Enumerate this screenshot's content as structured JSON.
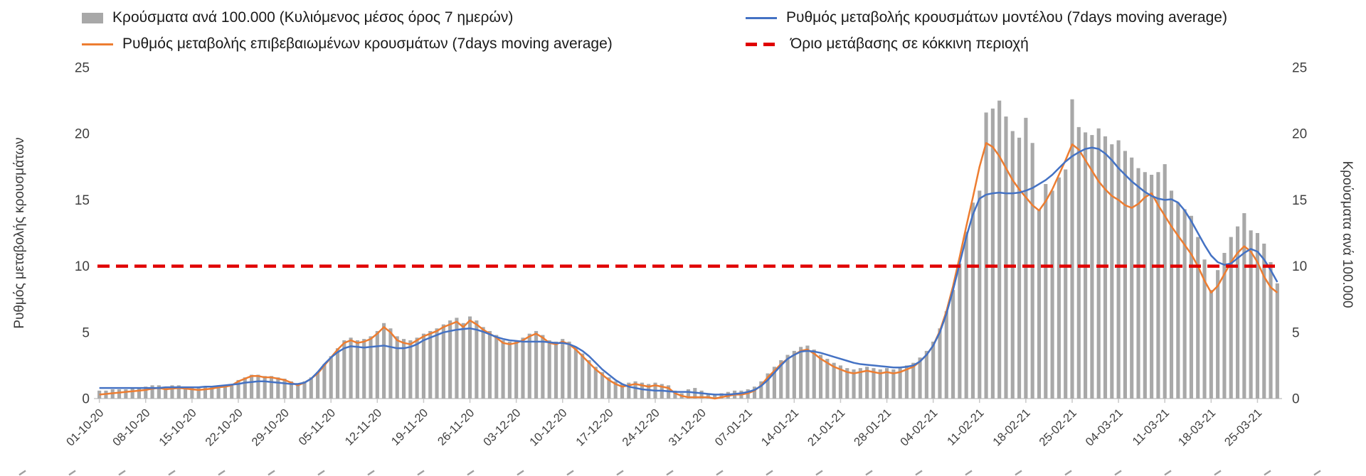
{
  "legend": {
    "bars": "Κρούσματα ανά 100.000 (Κυλιόμενος μέσος όρος 7 ημερών)",
    "model": "Ρυθμός μεταβολής κρουσμάτων μοντέλου (7days moving average)",
    "confirmed": "Ρυθμός μεταβολής επιβεβαιωμένων κρουσμάτων (7days moving average)",
    "threshold": "Όριο μετάβασης σε κόκκινη περιοχή"
  },
  "axes": {
    "left_label": "Ρυθμός μεταβολής κρουσμάτων",
    "right_label": "Κρούσματα ανά 100.000",
    "y_ticks": [
      0,
      5,
      10,
      15,
      20,
      25
    ],
    "x_ticks": [
      "01-10-20",
      "08-10-20",
      "15-10-20",
      "22-10-20",
      "29-10-20",
      "05-11-20",
      "12-11-20",
      "19-11-20",
      "26-11-20",
      "03-12-20",
      "10-12-20",
      "17-12-20",
      "24-12-20",
      "31-12-20",
      "07-01-21",
      "14-01-21",
      "21-01-21",
      "28-01-21",
      "04-02-21",
      "11-02-21",
      "18-02-21",
      "25-02-21",
      "04-03-21",
      "11-03-21",
      "18-03-21",
      "25-03-21"
    ]
  },
  "colors": {
    "bar": "#a8a8a8",
    "model_line": "#4472c4",
    "confirmed_line": "#ed7d31",
    "threshold_line": "#e00000",
    "axis_text": "#404040"
  },
  "chart_data": {
    "type": "bar",
    "subtype": "combo-bar-lines-threshold",
    "title": "",
    "xlabel": "",
    "ylabel_left": "Ρυθμός μεταβολής κρουσμάτων",
    "ylabel_right": "Κρούσματα ανά 100.000",
    "ylim": [
      0,
      25
    ],
    "grid": false,
    "legend_position": "top",
    "x_tick_labels": [
      "01-10-20",
      "08-10-20",
      "15-10-20",
      "22-10-20",
      "29-10-20",
      "05-11-20",
      "12-11-20",
      "19-11-20",
      "26-11-20",
      "03-12-20",
      "10-12-20",
      "17-12-20",
      "24-12-20",
      "31-12-20",
      "07-01-21",
      "14-01-21",
      "21-01-21",
      "28-01-21",
      "04-02-21",
      "11-02-21",
      "18-02-21",
      "25-02-21",
      "04-03-21",
      "11-03-21",
      "18-03-21",
      "25-03-21"
    ],
    "points_per_tick": 7,
    "series": [
      {
        "role": "bars",
        "name": "Κρούσματα ανά 100.000 (Κυλιόμενος μέσος όρος 7 ημερών)",
        "type": "bar",
        "values": [
          0.6,
          0.6,
          0.7,
          0.7,
          0.7,
          0.8,
          0.8,
          0.9,
          1.0,
          1.0,
          0.9,
          1.0,
          1.0,
          0.9,
          0.9,
          0.8,
          0.9,
          0.9,
          1.0,
          1.0,
          1.1,
          1.4,
          1.6,
          1.8,
          1.8,
          1.7,
          1.7,
          1.6,
          1.5,
          1.3,
          1.1,
          1.3,
          1.6,
          2.0,
          2.6,
          3.2,
          3.8,
          4.4,
          4.6,
          4.4,
          4.5,
          4.7,
          5.1,
          5.7,
          5.3,
          4.7,
          4.5,
          4.4,
          4.6,
          4.9,
          5.1,
          5.3,
          5.6,
          5.9,
          6.1,
          5.7,
          6.2,
          5.9,
          5.4,
          5.1,
          4.8,
          4.4,
          4.3,
          4.4,
          4.6,
          4.9,
          5.1,
          4.8,
          4.4,
          4.3,
          4.5,
          4.3,
          3.9,
          3.4,
          2.9,
          2.4,
          2.0,
          1.6,
          1.3,
          1.1,
          1.2,
          1.3,
          1.2,
          1.1,
          1.2,
          1.1,
          1.0,
          0.6,
          0.4,
          0.7,
          0.8,
          0.6,
          0.4,
          0.3,
          0.4,
          0.5,
          0.6,
          0.6,
          0.7,
          0.9,
          1.3,
          1.9,
          2.4,
          2.9,
          3.3,
          3.6,
          3.9,
          4.0,
          3.7,
          3.3,
          3.0,
          2.7,
          2.5,
          2.3,
          2.2,
          2.3,
          2.4,
          2.3,
          2.2,
          2.3,
          2.2,
          2.3,
          2.5,
          2.7,
          3.1,
          3.6,
          4.3,
          5.3,
          6.6,
          8.2,
          10.2,
          12.6,
          14.8,
          15.7,
          21.6,
          21.9,
          22.5,
          21.3,
          20.2,
          19.7,
          21.2,
          19.3,
          14.3,
          16.2,
          15.7,
          16.7,
          17.3,
          22.6,
          20.5,
          20.1,
          19.9,
          20.4,
          19.8,
          19.2,
          19.5,
          18.7,
          18.2,
          17.4,
          17.1,
          16.9,
          17.1,
          17.7,
          15.7,
          14.8,
          14.3,
          13.8,
          12.2,
          10.5,
          8.2,
          9.7,
          11.0,
          12.2,
          13.0,
          14.0,
          12.7,
          12.5,
          11.7,
          10.3,
          8.7
        ]
      },
      {
        "role": "model",
        "name": "Ρυθμός μεταβολής κρουσμάτων μοντέλου (7days moving average)",
        "type": "line",
        "values": [
          0.8,
          0.8,
          0.8,
          0.8,
          0.8,
          0.8,
          0.8,
          0.8,
          0.8,
          0.8,
          0.85,
          0.85,
          0.85,
          0.85,
          0.85,
          0.85,
          0.9,
          0.9,
          0.95,
          1.0,
          1.05,
          1.1,
          1.2,
          1.25,
          1.3,
          1.3,
          1.25,
          1.2,
          1.15,
          1.1,
          1.1,
          1.2,
          1.5,
          2.0,
          2.6,
          3.1,
          3.5,
          3.8,
          3.95,
          3.9,
          3.85,
          3.9,
          3.95,
          4.0,
          3.9,
          3.8,
          3.8,
          3.9,
          4.1,
          4.4,
          4.6,
          4.8,
          5.0,
          5.1,
          5.2,
          5.25,
          5.3,
          5.2,
          5.05,
          4.85,
          4.65,
          4.5,
          4.4,
          4.35,
          4.3,
          4.3,
          4.3,
          4.3,
          4.25,
          4.2,
          4.2,
          4.1,
          3.9,
          3.6,
          3.2,
          2.7,
          2.2,
          1.8,
          1.4,
          1.1,
          0.9,
          0.8,
          0.7,
          0.65,
          0.6,
          0.6,
          0.55,
          0.5,
          0.5,
          0.5,
          0.45,
          0.4,
          0.35,
          0.3,
          0.3,
          0.3,
          0.35,
          0.4,
          0.5,
          0.65,
          0.95,
          1.4,
          1.95,
          2.5,
          3.0,
          3.3,
          3.55,
          3.6,
          3.55,
          3.45,
          3.3,
          3.15,
          3.0,
          2.85,
          2.7,
          2.6,
          2.55,
          2.5,
          2.45,
          2.4,
          2.35,
          2.35,
          2.4,
          2.5,
          2.8,
          3.3,
          4.0,
          5.0,
          6.4,
          8.2,
          10.2,
          12.2,
          13.9,
          15.1,
          15.4,
          15.5,
          15.55,
          15.5,
          15.5,
          15.55,
          15.7,
          15.9,
          16.2,
          16.5,
          16.9,
          17.4,
          17.9,
          18.3,
          18.6,
          18.85,
          18.95,
          18.85,
          18.5,
          18.0,
          17.4,
          16.9,
          16.4,
          16.0,
          15.6,
          15.3,
          15.1,
          15.0,
          15.05,
          14.8,
          14.2,
          13.4,
          12.5,
          11.6,
          10.8,
          10.3,
          10.1,
          10.2,
          10.6,
          11.0,
          11.3,
          11.1,
          10.5,
          9.7,
          8.8
        ]
      },
      {
        "role": "confirmed",
        "name": "Ρυθμός μεταβολής επιβεβαιωμένων κρουσμάτων (7days moving average)",
        "type": "line",
        "values": [
          0.3,
          0.35,
          0.4,
          0.45,
          0.5,
          0.55,
          0.6,
          0.65,
          0.75,
          0.8,
          0.7,
          0.75,
          0.8,
          0.75,
          0.7,
          0.65,
          0.7,
          0.75,
          0.85,
          0.9,
          1.0,
          1.3,
          1.5,
          1.7,
          1.7,
          1.6,
          1.6,
          1.5,
          1.4,
          1.2,
          1.0,
          1.2,
          1.5,
          1.9,
          2.5,
          3.1,
          3.7,
          4.2,
          4.4,
          4.2,
          4.3,
          4.5,
          4.9,
          5.4,
          5.0,
          4.4,
          4.2,
          4.1,
          4.4,
          4.7,
          4.9,
          5.1,
          5.4,
          5.6,
          5.8,
          5.4,
          5.9,
          5.6,
          5.2,
          4.9,
          4.6,
          4.2,
          4.1,
          4.2,
          4.4,
          4.7,
          4.9,
          4.6,
          4.2,
          4.1,
          4.3,
          4.1,
          3.7,
          3.2,
          2.7,
          2.2,
          1.8,
          1.4,
          1.1,
          0.9,
          1.0,
          1.1,
          1.0,
          0.9,
          1.0,
          0.9,
          0.8,
          0.4,
          0.2,
          0.1,
          0.1,
          0.1,
          0.1,
          0.0,
          0.1,
          0.2,
          0.3,
          0.3,
          0.4,
          0.6,
          1.0,
          1.6,
          2.1,
          2.6,
          3.0,
          3.3,
          3.6,
          3.7,
          3.4,
          3.0,
          2.7,
          2.4,
          2.2,
          2.0,
          1.9,
          2.0,
          2.1,
          2.0,
          1.9,
          2.0,
          1.9,
          2.0,
          2.2,
          2.4,
          2.8,
          3.3,
          4.0,
          5.1,
          6.6,
          8.5,
          10.7,
          13.0,
          15.2,
          17.5,
          19.3,
          19.0,
          18.3,
          17.4,
          16.5,
          15.8,
          15.2,
          14.6,
          14.2,
          14.9,
          15.8,
          16.9,
          18.0,
          19.2,
          18.8,
          18.0,
          17.2,
          16.4,
          15.8,
          15.3,
          15.0,
          14.6,
          14.4,
          14.7,
          15.2,
          15.5,
          14.6,
          13.8,
          13.0,
          12.3,
          11.6,
          10.9,
          10.0,
          8.9,
          8.0,
          8.5,
          9.4,
          10.3,
          11.0,
          11.5,
          11.1,
          10.3,
          9.2,
          8.4,
          8.0
        ]
      },
      {
        "role": "threshold",
        "name": "Όριο μετάβασης σε κόκκινη περιοχή",
        "type": "hline",
        "value": 10
      }
    ]
  }
}
